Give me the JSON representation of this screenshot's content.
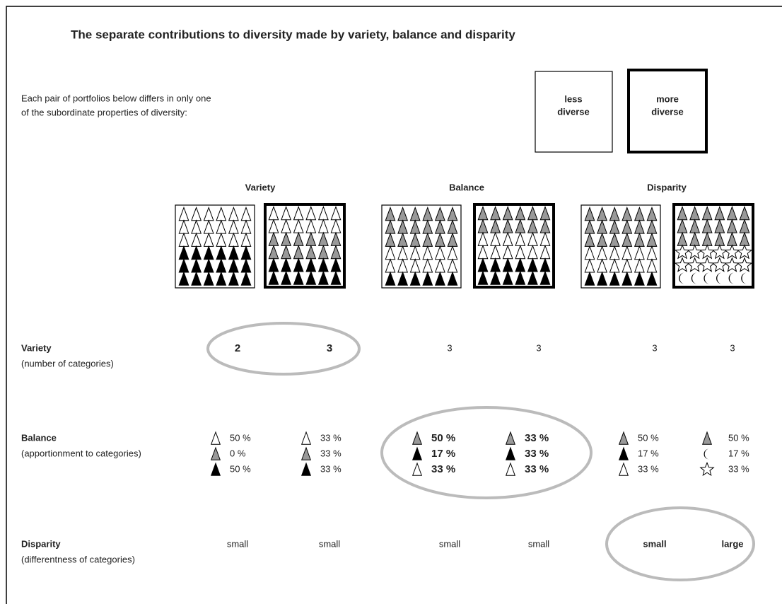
{
  "title": "The separate contributions to diversity made by variety, balance and disparity",
  "intro": [
    "Each pair of portfolios below differs in only one",
    "of the subordinate properties of diversity:"
  ],
  "legend": {
    "less": [
      "less",
      "diverse"
    ],
    "more": [
      "more",
      "diverse"
    ]
  },
  "columns": [
    "Variety",
    "Balance",
    "Disparity"
  ],
  "rows": {
    "variety": {
      "label": "Variety",
      "sublabel": "(number of categories)",
      "values": [
        2,
        3,
        3,
        3,
        3,
        3
      ]
    },
    "balance": {
      "label": "Balance",
      "sublabel": "(apportionment to categories)",
      "cells": [
        [
          "50 %",
          "0 %",
          "50 %"
        ],
        [
          "33  %",
          "33 %",
          "33 %"
        ],
        [
          "50 %",
          "17 %",
          "33 %"
        ],
        [
          "33 %",
          "33 %",
          "33 %"
        ],
        [
          "50 %",
          "17 %",
          "33 %"
        ],
        [
          "50 %",
          "17 %",
          "33 %"
        ]
      ]
    },
    "disparity": {
      "label": "Disparity",
      "sublabel": "(differentness of categories)",
      "values": [
        "small",
        "small",
        "small",
        "small",
        "small",
        "large"
      ]
    }
  }
}
